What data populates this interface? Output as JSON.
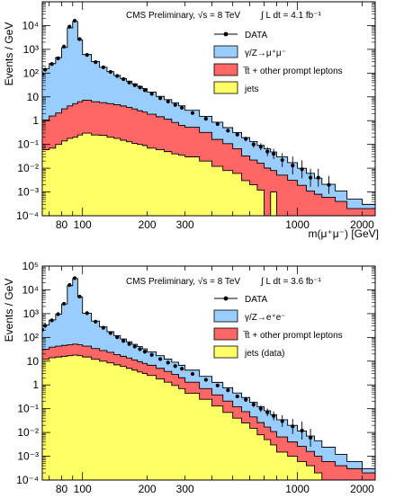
{
  "chart_data": [
    {
      "type": "area",
      "log_x": true,
      "log_y": true,
      "xlim": [
        65,
        2300
      ],
      "ylim": [
        0.0001,
        100000
      ],
      "ylabel": "Events / GeV",
      "xlabel": "m(μ⁺μ⁻) [GeV]",
      "annotation": "CMS Preliminary, √s = 8 TeV",
      "lumi_text": "∫ L dt = 4.1 fb⁻¹",
      "x_tick_labels": [
        "80",
        "100",
        "200",
        "300",
        "1000",
        "2000"
      ],
      "x_tick_values": [
        80,
        100,
        200,
        300,
        1000,
        2000
      ],
      "y_tick_labels": [
        "10⁴",
        "10³",
        "10²",
        "10",
        "1",
        "10⁻¹",
        "10⁻²",
        "10⁻³",
        "10⁻⁴"
      ],
      "y_tick_values": [
        10000,
        1000,
        100,
        10,
        1,
        0.1,
        0.01,
        0.001,
        0.0001
      ],
      "legend": [
        {
          "label": "DATA",
          "kind": "marker"
        },
        {
          "label": "γ/Z→μ⁺μ⁻",
          "kind": "fill",
          "color": "#99ccff"
        },
        {
          "label": "t̅t + other prompt leptons",
          "kind": "fill",
          "color": "#ff6666"
        },
        {
          "label": "jets",
          "kind": "fill",
          "color": "#ffff66"
        }
      ],
      "bin_edges": [
        60,
        65,
        70,
        75,
        80,
        85,
        90,
        95,
        100,
        110,
        120,
        130,
        140,
        150,
        160,
        170,
        180,
        190,
        200,
        220,
        240,
        260,
        280,
        300,
        350,
        400,
        450,
        500,
        550,
        600,
        650,
        700,
        750,
        800,
        900,
        1000,
        1100,
        1200,
        1300,
        1500,
        1700,
        2000,
        2300
      ],
      "series": [
        {
          "name": "jets",
          "color": "#ffff66",
          "values": [
            0.05,
            0.06,
            0.07,
            0.1,
            0.14,
            0.18,
            0.2,
            0.25,
            0.3,
            0.25,
            0.24,
            0.2,
            0.18,
            0.15,
            0.13,
            0.11,
            0.1,
            0.09,
            0.07,
            0.06,
            0.05,
            0.04,
            0.035,
            0.03,
            0.02,
            0.012,
            0.008,
            0.006,
            0.003,
            0.002,
            0.0012,
            0.0001,
            0.001,
            0.0001,
            0.0001,
            0.0001,
            0.0001,
            0.0001,
            0.0001,
            0.0001,
            0.0001,
            0.0001
          ]
        },
        {
          "name": "t̅t + other prompt leptons",
          "color": "#ff6666",
          "values": [
            0.5,
            1.0,
            1.5,
            2,
            3,
            4,
            5,
            6,
            7,
            6,
            5.5,
            5,
            4.5,
            4,
            3.5,
            3,
            2.5,
            2.2,
            1.8,
            1.4,
            1.1,
            0.8,
            0.6,
            0.5,
            0.3,
            0.15,
            0.1,
            0.06,
            0.03,
            0.02,
            0.015,
            0.01,
            0.007,
            0.005,
            0.003,
            0.0018,
            0.001,
            0.0007,
            0.0005,
            0.0003,
            0.0001,
            0.0001
          ]
        },
        {
          "name": "γ/Z→μ⁺μ⁻",
          "color": "#99ccff",
          "values": [
            100,
            150,
            250,
            450,
            1200,
            8000,
            15000,
            2500,
            600,
            300,
            170,
            110,
            75,
            55,
            42,
            32,
            25,
            20,
            14,
            9,
            6.5,
            4.8,
            3.6,
            2.2,
            1.2,
            0.7,
            0.4,
            0.25,
            0.16,
            0.11,
            0.075,
            0.055,
            0.04,
            0.025,
            0.014,
            0.008,
            0.005,
            0.003,
            0.0015,
            0.0007,
            0.0003,
            0.0001
          ]
        }
      ],
      "data_points": {
        "name": "DATA",
        "x": [
          62,
          67,
          72,
          77,
          82,
          87,
          92,
          97,
          105,
          115,
          125,
          135,
          145,
          155,
          165,
          175,
          185,
          195,
          210,
          230,
          250,
          270,
          290,
          325,
          375,
          425,
          475,
          525,
          575,
          625,
          675,
          725,
          775,
          850,
          950,
          1050,
          1150,
          1250,
          1400
        ],
        "y": [
          90,
          140,
          240,
          420,
          1300,
          9000,
          16000,
          2700,
          580,
          290,
          175,
          112,
          76,
          56,
          40,
          31,
          25,
          19,
          13.5,
          8.8,
          6.4,
          4.6,
          3.5,
          2.1,
          1.2,
          0.72,
          0.38,
          0.26,
          0.17,
          0.1,
          0.08,
          0.05,
          0.04,
          0.022,
          0.013,
          0.009,
          0.004,
          0.004,
          0.002
        ]
      }
    },
    {
      "type": "area",
      "log_x": true,
      "log_y": true,
      "xlim": [
        65,
        2300
      ],
      "ylim": [
        0.0001,
        100000
      ],
      "ylabel": "Events / GeV",
      "xlabel": "",
      "annotation": "CMS Preliminary, √s = 8 TeV",
      "lumi_text": "∫ L dt = 3.6 fb⁻¹",
      "x_tick_labels": [
        "80",
        "100",
        "200",
        "300",
        "1000",
        "2000"
      ],
      "x_tick_values": [
        80,
        100,
        200,
        300,
        1000,
        2000
      ],
      "y_tick_labels": [
        "10⁵",
        "10⁴",
        "10³",
        "10²",
        "10",
        "1",
        "10⁻¹",
        "10⁻²",
        "10⁻³",
        "10⁻⁴"
      ],
      "y_tick_values": [
        100000,
        10000,
        1000,
        100,
        10,
        1,
        0.1,
        0.01,
        0.001,
        0.0001
      ],
      "legend": [
        {
          "label": "DATA",
          "kind": "marker"
        },
        {
          "label": "γ/Z→e⁺e⁻",
          "kind": "fill",
          "color": "#99ccff"
        },
        {
          "label": "t̅t + other prompt leptons",
          "kind": "fill",
          "color": "#ff6666"
        },
        {
          "label": "jets (data)",
          "kind": "fill",
          "color": "#ffff66"
        }
      ],
      "bin_edges": [
        60,
        65,
        70,
        75,
        80,
        85,
        90,
        95,
        100,
        110,
        120,
        130,
        140,
        150,
        160,
        170,
        180,
        190,
        200,
        220,
        240,
        260,
        280,
        300,
        350,
        400,
        450,
        500,
        550,
        600,
        650,
        700,
        750,
        800,
        900,
        1000,
        1100,
        1200,
        1300,
        1500,
        1700,
        2000,
        2300
      ],
      "series": [
        {
          "name": "jets (data)",
          "color": "#ffff66",
          "values": [
            10,
            12,
            14,
            15,
            16,
            17,
            18,
            17,
            15,
            12,
            10,
            8.5,
            7,
            6,
            5,
            4.2,
            3.5,
            3,
            2.5,
            1.8,
            1.3,
            0.95,
            0.7,
            0.45,
            0.25,
            0.13,
            0.07,
            0.04,
            0.025,
            0.015,
            0.008,
            0.005,
            0.003,
            0.0015,
            0.001,
            0.0006,
            0.0004,
            0.0002,
            0.0001,
            0.0001,
            0.0001,
            0.0001
          ]
        },
        {
          "name": "t̅t + other prompt leptons",
          "color": "#ff6666",
          "values": [
            15,
            20,
            25,
            28,
            30,
            32,
            34,
            32,
            28,
            22,
            18,
            15,
            12,
            10,
            8.5,
            7,
            6,
            5,
            4.2,
            3.2,
            2.4,
            1.8,
            1.3,
            0.85,
            0.45,
            0.25,
            0.14,
            0.08,
            0.05,
            0.03,
            0.018,
            0.012,
            0.008,
            0.005,
            0.003,
            0.002,
            0.0012,
            0.0008,
            0.0005,
            0.0003,
            0.0002,
            0.0001
          ]
        },
        {
          "name": "γ/Z→e⁺e⁻",
          "color": "#99ccff",
          "values": [
            200,
            300,
            500,
            900,
            2500,
            15000,
            30000,
            5000,
            1000,
            450,
            250,
            150,
            100,
            70,
            52,
            40,
            32,
            25,
            18,
            12,
            8.5,
            6.3,
            4.7,
            2.9,
            1.6,
            0.9,
            0.55,
            0.34,
            0.22,
            0.14,
            0.095,
            0.065,
            0.045,
            0.028,
            0.016,
            0.009,
            0.0055,
            0.0035,
            0.0018,
            0.0008,
            0.0003,
            0.0001
          ]
        }
      ],
      "data_points": {
        "name": "DATA",
        "x": [
          62,
          67,
          72,
          77,
          82,
          87,
          92,
          97,
          105,
          115,
          125,
          135,
          145,
          155,
          165,
          175,
          185,
          195,
          210,
          230,
          250,
          270,
          290,
          325,
          375,
          425,
          475,
          525,
          575,
          625,
          675,
          725,
          775,
          850,
          950,
          1050,
          1150
        ],
        "y": [
          210,
          310,
          520,
          950,
          2600,
          16000,
          31000,
          5200,
          1050,
          460,
          255,
          152,
          102,
          71,
          53,
          41,
          32,
          25,
          18.5,
          12.2,
          8.7,
          6.2,
          4.8,
          2.9,
          1.65,
          0.95,
          0.6,
          0.33,
          0.24,
          0.15,
          0.1,
          0.07,
          0.05,
          0.03,
          0.018,
          0.012,
          0.006
        ]
      }
    }
  ]
}
